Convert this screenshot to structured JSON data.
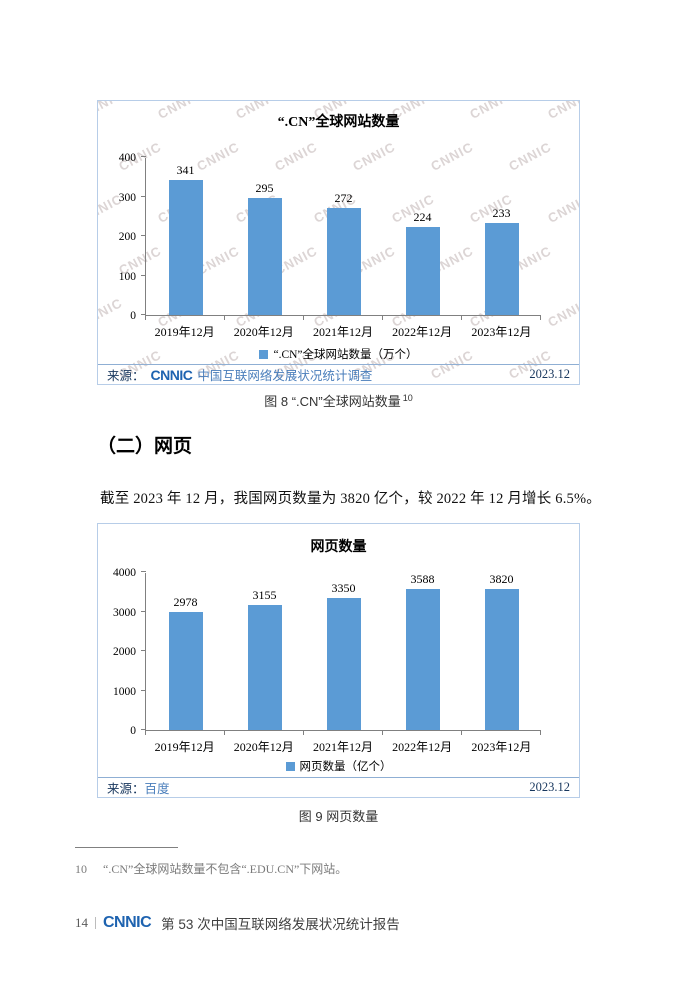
{
  "section": {
    "heading": "（二）网页",
    "paragraph": "截至 2023 年 12 月，我国网页数量为 3820 亿个，较 2022 年 12 月增长 6.5%。"
  },
  "figures": {
    "fig8": {
      "caption": "图 8 “.CN”全球网站数量",
      "caption_sup": "10",
      "source_label": "来源：",
      "source_logo": "CNNIC",
      "source_text": "中国互联网络发展状况统计调查",
      "source_date": "2023.12",
      "watermark_text": "CNNIC"
    },
    "fig9": {
      "caption": "图 9 网页数量",
      "source_label": "来源：",
      "source_text": "百度",
      "source_date": "2023.12"
    }
  },
  "footnote": {
    "marker": "10",
    "text": "“.CN”全球网站数量不包含“.EDU.CN”下网站。"
  },
  "footer": {
    "page_number": "14",
    "logo": "CNNIC",
    "report_title": "第 53 次中国互联网络发展状况统计报告"
  },
  "colors": {
    "bar": "#5B9BD5",
    "box_border": "#B7CDE8",
    "source_navy": "#17365D",
    "source_blue": "#4A7EBB",
    "logo_blue": "#1E63B0"
  },
  "chart_data": [
    {
      "type": "bar",
      "title": "“.CN”全球网站数量",
      "categories": [
        "2019年12月",
        "2020年12月",
        "2021年12月",
        "2022年12月",
        "2023年12月"
      ],
      "values": [
        341,
        295,
        272,
        224,
        233
      ],
      "legend": "“.CN”全球网站数量（万个）",
      "xlabel": "",
      "ylabel": "",
      "ylim": [
        0,
        400
      ],
      "ytick_step": 100,
      "unit": "万个",
      "grid": false,
      "legend_position": "bottom"
    },
    {
      "type": "bar",
      "title": "网页数量",
      "categories": [
        "2019年12月",
        "2020年12月",
        "2021年12月",
        "2022年12月",
        "2023年12月"
      ],
      "values": [
        2978,
        3155,
        3350,
        3588,
        3820
      ],
      "legend": "网页数量（亿个）",
      "xlabel": "",
      "ylabel": "",
      "ylim": [
        0,
        4000
      ],
      "ytick_step": 1000,
      "unit": "亿个",
      "grid": false,
      "legend_position": "bottom"
    }
  ]
}
